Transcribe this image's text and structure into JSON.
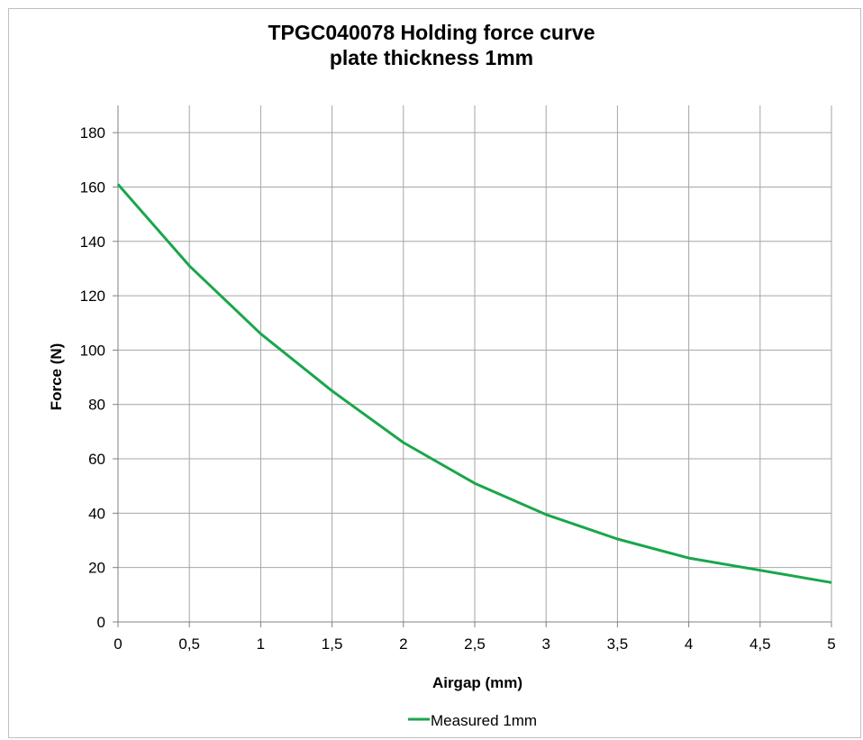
{
  "chart_data": {
    "type": "line",
    "title_line1": "TPGC040078   Holding force curve",
    "title_line2": "plate thickness 1mm",
    "xlabel": "Airgap (mm)",
    "ylabel": "Force (N)",
    "xlim": [
      0,
      5
    ],
    "ylim": [
      0,
      190
    ],
    "x_ticks": [
      0,
      0.5,
      1,
      1.5,
      2,
      2.5,
      3,
      3.5,
      4,
      4.5,
      5
    ],
    "x_tick_labels": [
      "0",
      "0,5",
      "1",
      "1,5",
      "2",
      "2,5",
      "3",
      "3,5",
      "4",
      "4,5",
      "5"
    ],
    "y_ticks": [
      0,
      20,
      40,
      60,
      80,
      100,
      120,
      140,
      160,
      180
    ],
    "y_tick_labels": [
      "0",
      "20",
      "40",
      "60",
      "80",
      "100",
      "120",
      "140",
      "160",
      "180"
    ],
    "grid": true,
    "legend_position": "bottom",
    "series": [
      {
        "name": "Measured 1mm",
        "color": "#1aa64b",
        "x": [
          0,
          0.5,
          1,
          1.5,
          2,
          2.5,
          3,
          3.5,
          4,
          4.5,
          5
        ],
        "y": [
          161,
          131,
          106,
          85,
          66,
          51,
          39.5,
          30.5,
          23.5,
          19,
          14.5
        ]
      }
    ]
  }
}
